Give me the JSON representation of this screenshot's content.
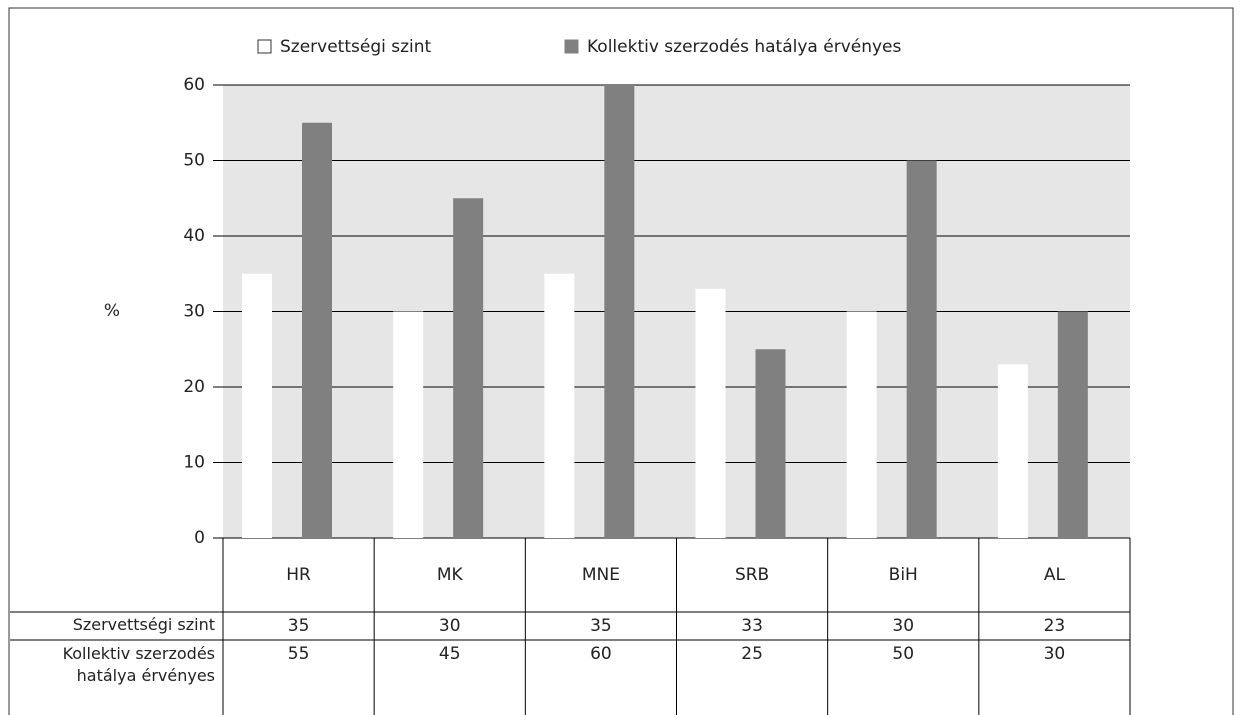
{
  "chart_data": {
    "type": "bar",
    "ylabel": "%",
    "categories": [
      "HR",
      "MK",
      "MNE",
      "SRB",
      "BiH",
      "AL"
    ],
    "series": [
      {
        "name": "Szervettségi szint",
        "color": "#ffffff",
        "values": [
          35,
          30,
          35,
          33,
          30,
          23
        ]
      },
      {
        "name": "Kollektiv szerzodés hatálya érvényes",
        "color": "#808080",
        "values": [
          55,
          45,
          60,
          25,
          50,
          30
        ]
      }
    ],
    "ylim": [
      0,
      60
    ],
    "yticks": [
      0,
      10,
      20,
      30,
      40,
      50,
      60
    ],
    "grid": true,
    "legend": "top",
    "plot_background": "#e6e6e6"
  }
}
